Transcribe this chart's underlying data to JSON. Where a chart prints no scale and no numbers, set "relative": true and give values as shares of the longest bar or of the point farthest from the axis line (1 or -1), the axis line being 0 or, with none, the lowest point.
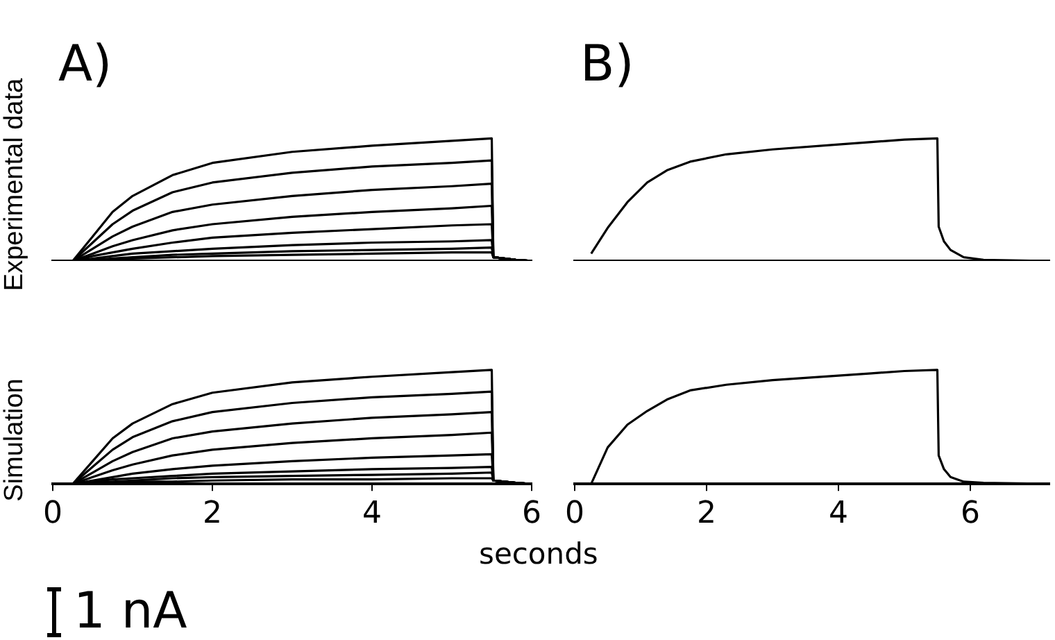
{
  "chart_data": [
    {
      "type": "line",
      "title": "A)",
      "ylabel": "Experimental data",
      "relative": true,
      "legend": false,
      "grid": false,
      "marker": "none",
      "line_style": "solid",
      "tick_labels": false,
      "xlim": [
        0,
        6
      ],
      "x": [
        0.25,
        0.5,
        0.75,
        1,
        1.5,
        2,
        3,
        4,
        5,
        5.5,
        5.52,
        5.8,
        6
      ],
      "series": [
        {
          "color": "#000000",
          "values": [
            0,
            0.2,
            0.4,
            0.53,
            0.7,
            0.8,
            0.89,
            0.94,
            0.98,
            1,
            0.03,
            0.01,
            0
          ]
        },
        {
          "color": "#000000",
          "values": [
            0,
            0.15,
            0.3,
            0.41,
            0.56,
            0.64,
            0.72,
            0.77,
            0.8,
            0.82,
            0.03,
            0.01,
            0
          ]
        },
        {
          "color": "#000000",
          "values": [
            0,
            0.1,
            0.2,
            0.28,
            0.4,
            0.46,
            0.53,
            0.58,
            0.61,
            0.63,
            0.03,
            0.01,
            0
          ]
        },
        {
          "color": "#000000",
          "values": [
            0,
            0.06,
            0.12,
            0.17,
            0.25,
            0.3,
            0.36,
            0.4,
            0.43,
            0.45,
            0.03,
            0.01,
            0
          ]
        },
        {
          "color": "#000000",
          "values": [
            0,
            0.04,
            0.07,
            0.1,
            0.15,
            0.19,
            0.23,
            0.26,
            0.29,
            0.3,
            0.03,
            0.01,
            0
          ]
        },
        {
          "color": "#000000",
          "values": [
            0,
            0.02,
            0.04,
            0.06,
            0.08,
            0.1,
            0.13,
            0.15,
            0.16,
            0.17,
            0.03,
            0.01,
            0
          ]
        },
        {
          "color": "#000000",
          "values": [
            0,
            0.01,
            0.02,
            0.03,
            0.05,
            0.06,
            0.08,
            0.09,
            0.1,
            0.11,
            0.03,
            0.01,
            0
          ]
        },
        {
          "color": "#000000",
          "values": [
            0,
            0.01,
            0.01,
            0.02,
            0.03,
            0.04,
            0.05,
            0.06,
            0.07,
            0.07,
            0.03,
            0.01,
            0
          ]
        }
      ]
    },
    {
      "type": "line",
      "title": "B)",
      "relative": true,
      "legend": false,
      "grid": false,
      "marker": "none",
      "line_style": "solid",
      "tick_labels": false,
      "xlim": [
        0,
        7.2
      ],
      "series": [
        {
          "color": "#000000",
          "x": [
            0.25,
            0.5,
            0.8,
            1.1,
            1.4,
            1.75,
            2.3,
            3,
            4,
            4.5,
            5,
            5.5,
            5.52,
            5.6,
            5.7,
            5.9,
            6.2,
            7.2
          ],
          "values": [
            0.06,
            0.27,
            0.48,
            0.64,
            0.74,
            0.81,
            0.87,
            0.91,
            0.95,
            0.97,
            0.99,
            1,
            0.28,
            0.16,
            0.09,
            0.03,
            0.01,
            0
          ]
        }
      ]
    },
    {
      "type": "line",
      "ylabel": "Simulation",
      "xlabel": "seconds",
      "annotations": [
        "1 nA"
      ],
      "relative": true,
      "legend": false,
      "grid": false,
      "marker": "none",
      "line_style": "solid",
      "tick_labels": "x",
      "xlim": [
        0,
        6
      ],
      "xticks": [
        0,
        2,
        4,
        6
      ],
      "x": [
        0.25,
        0.5,
        0.75,
        1,
        1.5,
        2,
        3,
        4,
        5,
        5.5,
        5.52,
        5.8,
        6
      ],
      "series": [
        {
          "color": "#000000",
          "values": [
            0,
            0.2,
            0.4,
            0.53,
            0.7,
            0.8,
            0.89,
            0.94,
            0.98,
            1,
            0.03,
            0.01,
            0
          ]
        },
        {
          "color": "#000000",
          "values": [
            0,
            0.15,
            0.3,
            0.41,
            0.55,
            0.63,
            0.71,
            0.76,
            0.79,
            0.81,
            0.03,
            0.01,
            0
          ]
        },
        {
          "color": "#000000",
          "values": [
            0,
            0.1,
            0.2,
            0.28,
            0.4,
            0.46,
            0.53,
            0.58,
            0.61,
            0.63,
            0.03,
            0.01,
            0
          ]
        },
        {
          "color": "#000000",
          "values": [
            0,
            0.06,
            0.12,
            0.17,
            0.25,
            0.3,
            0.36,
            0.4,
            0.43,
            0.45,
            0.03,
            0.01,
            0
          ]
        },
        {
          "color": "#000000",
          "values": [
            0,
            0.03,
            0.06,
            0.09,
            0.13,
            0.16,
            0.2,
            0.23,
            0.25,
            0.26,
            0.03,
            0.01,
            0
          ]
        },
        {
          "color": "#000000",
          "values": [
            0,
            0.02,
            0.04,
            0.05,
            0.07,
            0.09,
            0.11,
            0.13,
            0.14,
            0.15,
            0.03,
            0.01,
            0
          ]
        },
        {
          "color": "#000000",
          "values": [
            0,
            0.01,
            0.02,
            0.03,
            0.05,
            0.06,
            0.07,
            0.08,
            0.09,
            0.1,
            0.03,
            0.01,
            0
          ]
        },
        {
          "color": "#000000",
          "values": [
            0,
            0.01,
            0.01,
            0.02,
            0.02,
            0.03,
            0.04,
            0.04,
            0.05,
            0.05,
            0.03,
            0.01,
            0
          ]
        }
      ]
    },
    {
      "type": "line",
      "relative": true,
      "legend": false,
      "grid": false,
      "marker": "none",
      "line_style": "solid",
      "tick_labels": "x",
      "xlim": [
        0,
        7.2
      ],
      "xticks": [
        0,
        2,
        4,
        6
      ],
      "series": [
        {
          "color": "#000000",
          "x": [
            0.25,
            0.5,
            0.8,
            1.1,
            1.4,
            1.75,
            2.3,
            3,
            4,
            4.5,
            5,
            5.5,
            5.52,
            5.6,
            5.7,
            5.9,
            6.2,
            7.2
          ],
          "values": [
            0,
            0.32,
            0.52,
            0.64,
            0.74,
            0.82,
            0.87,
            0.91,
            0.95,
            0.97,
            0.99,
            1,
            0.25,
            0.13,
            0.06,
            0.02,
            0.01,
            0
          ]
        }
      ]
    }
  ]
}
